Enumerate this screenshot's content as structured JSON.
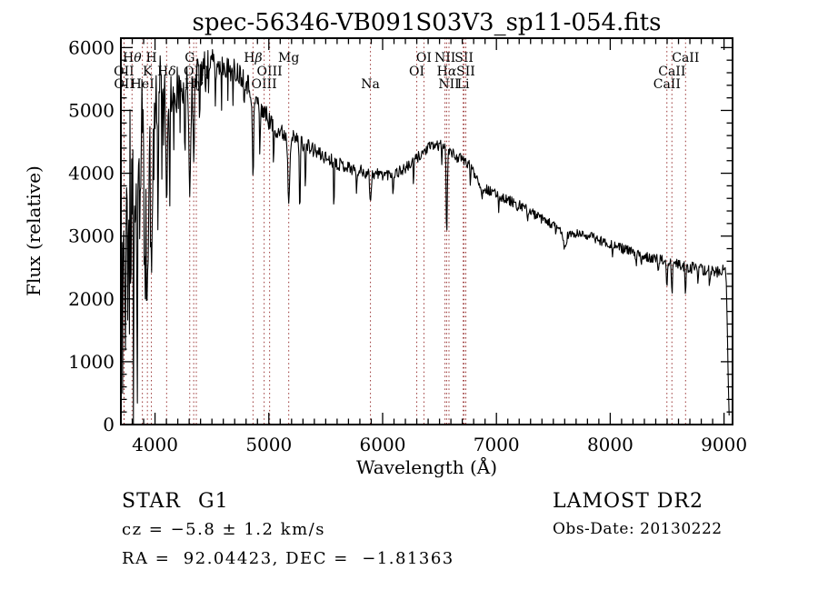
{
  "title": "spec-56346-VB091S03V3_sp11-054.fits",
  "footer": {
    "class_label": "STAR",
    "subclass_label": "G1",
    "cz_line": "cz = −5.8 ± 1.2 km/s",
    "radec_line": "RA =  92.04423, DEC =  −1.81363",
    "survey_label": "LAMOST DR2",
    "obs_date_label": "Obs-Date: 20130222"
  },
  "colors": {
    "background": "#ffffff",
    "spectrum": "#000000",
    "frame": "#000000",
    "text": "#000000",
    "marker_line": "#993333"
  },
  "chart_data": {
    "type": "line",
    "title": "spec-56346-VB091S03V3_sp11-054.fits",
    "xlabel": "Wavelength (Å)",
    "ylabel": "Flux (relative)",
    "xlim": [
      3700,
      9075
    ],
    "ylim": [
      0,
      6150
    ],
    "xticks": [
      4000,
      5000,
      6000,
      7000,
      8000,
      9000
    ],
    "yticks": [
      0,
      1000,
      2000,
      3000,
      4000,
      5000,
      6000
    ],
    "x_minor_step": 100,
    "y_minor_step": 200,
    "grid": false,
    "legend": "none",
    "sample_step": 5,
    "spectrum_end": 9048,
    "noise_seed": 11,
    "spectral_lines": [
      {
        "label": "OII",
        "wavelength": 3727,
        "row": 2
      },
      {
        "label": "OII",
        "wavelength": 3729,
        "row": 3
      },
      {
        "label": "Hθ",
        "wavelength": 3798,
        "row": 1
      },
      {
        "label": "HeI",
        "wavelength": 3889,
        "row": 3
      },
      {
        "label": "K",
        "wavelength": 3933,
        "row": 2
      },
      {
        "label": "H",
        "wavelength": 3968,
        "row": 1
      },
      {
        "label": "Hδ",
        "wavelength": 4102,
        "row": 2
      },
      {
        "label": "G",
        "wavelength": 4305,
        "row": 1
      },
      {
        "label": "Hγ",
        "wavelength": 4340,
        "row": 3
      },
      {
        "label": "OIII",
        "wavelength": 4363,
        "row": 2
      },
      {
        "label": "Hβ",
        "wavelength": 4861,
        "row": 1
      },
      {
        "label": "OIII",
        "wavelength": 4959,
        "row": 3
      },
      {
        "label": "OIII",
        "wavelength": 5007,
        "row": 2
      },
      {
        "label": "Mg",
        "wavelength": 5175,
        "row": 1
      },
      {
        "label": "Na",
        "wavelength": 5893,
        "row": 3
      },
      {
        "label": "OI",
        "wavelength": 6300,
        "row": 2
      },
      {
        "label": "OI",
        "wavelength": 6363,
        "row": 1
      },
      {
        "label": "NII",
        "wavelength": 6548,
        "row": 1
      },
      {
        "label": "Hα",
        "wavelength": 6563,
        "row": 2
      },
      {
        "label": "NII",
        "wavelength": 6583,
        "row": 3
      },
      {
        "label": "Li",
        "wavelength": 6708,
        "row": 3
      },
      {
        "label": "SII",
        "wavelength": 6716,
        "row": 1
      },
      {
        "label": "SII",
        "wavelength": 6731,
        "row": 2
      },
      {
        "label": "CaII",
        "wavelength": 8498,
        "row": 3
      },
      {
        "label": "CaII",
        "wavelength": 8542,
        "row": 2
      },
      {
        "label": "CaII",
        "wavelength": 8662,
        "row": 1
      }
    ],
    "continuum_anchors": [
      [
        3700,
        2300
      ],
      [
        3720,
        3100
      ],
      [
        3745,
        3550
      ],
      [
        3775,
        3900
      ],
      [
        3805,
        4250
      ],
      [
        3835,
        4500
      ],
      [
        3865,
        4700
      ],
      [
        3895,
        4850
      ],
      [
        3925,
        4900
      ],
      [
        3955,
        4950
      ],
      [
        3985,
        5100
      ],
      [
        4015,
        5250
      ],
      [
        4045,
        5400
      ],
      [
        4075,
        5420
      ],
      [
        4105,
        5400
      ],
      [
        4135,
        5320
      ],
      [
        4165,
        5300
      ],
      [
        4200,
        5350
      ],
      [
        4240,
        5400
      ],
      [
        4280,
        5430
      ],
      [
        4320,
        5480
      ],
      [
        4360,
        5560
      ],
      [
        4400,
        5640
      ],
      [
        4440,
        5720
      ],
      [
        4480,
        5760
      ],
      [
        4520,
        5760
      ],
      [
        4560,
        5700
      ],
      [
        4600,
        5730
      ],
      [
        4640,
        5690
      ],
      [
        4680,
        5650
      ],
      [
        4720,
        5620
      ],
      [
        4760,
        5570
      ],
      [
        4800,
        5480
      ],
      [
        4840,
        5330
      ],
      [
        4880,
        5180
      ],
      [
        4920,
        5100
      ],
      [
        4960,
        4980
      ],
      [
        5000,
        4850
      ],
      [
        5050,
        4730
      ],
      [
        5100,
        4660
      ],
      [
        5150,
        4610
      ],
      [
        5200,
        4570
      ],
      [
        5250,
        4530
      ],
      [
        5300,
        4480
      ],
      [
        5350,
        4420
      ],
      [
        5400,
        4360
      ],
      [
        5450,
        4300
      ],
      [
        5500,
        4250
      ],
      [
        5560,
        4200
      ],
      [
        5620,
        4150
      ],
      [
        5680,
        4110
      ],
      [
        5740,
        4070
      ],
      [
        5800,
        4040
      ],
      [
        5860,
        4010
      ],
      [
        5920,
        3990
      ],
      [
        5980,
        3985
      ],
      [
        6040,
        3985
      ],
      [
        6100,
        4000
      ],
      [
        6160,
        4040
      ],
      [
        6220,
        4100
      ],
      [
        6280,
        4200
      ],
      [
        6340,
        4310
      ],
      [
        6400,
        4400
      ],
      [
        6450,
        4440
      ],
      [
        6500,
        4450
      ],
      [
        6550,
        4430
      ],
      [
        6600,
        4330
      ],
      [
        6650,
        4260
      ],
      [
        6700,
        4220
      ],
      [
        6750,
        4150
      ],
      [
        6800,
        4020
      ],
      [
        6850,
        3880
      ],
      [
        6900,
        3760
      ],
      [
        6950,
        3700
      ],
      [
        7000,
        3660
      ],
      [
        7060,
        3610
      ],
      [
        7120,
        3560
      ],
      [
        7180,
        3520
      ],
      [
        7240,
        3460
      ],
      [
        7300,
        3390
      ],
      [
        7360,
        3310
      ],
      [
        7420,
        3250
      ],
      [
        7480,
        3190
      ],
      [
        7540,
        3130
      ],
      [
        7600,
        3040
      ],
      [
        7660,
        3020
      ],
      [
        7720,
        3030
      ],
      [
        7780,
        3020
      ],
      [
        7840,
        2990
      ],
      [
        7900,
        2940
      ],
      [
        7960,
        2900
      ],
      [
        8020,
        2860
      ],
      [
        8080,
        2820
      ],
      [
        8140,
        2780
      ],
      [
        8200,
        2740
      ],
      [
        8260,
        2700
      ],
      [
        8320,
        2680
      ],
      [
        8380,
        2650
      ],
      [
        8440,
        2620
      ],
      [
        8500,
        2590
      ],
      [
        8560,
        2560
      ],
      [
        8620,
        2535
      ],
      [
        8680,
        2510
      ],
      [
        8740,
        2490
      ],
      [
        8800,
        2465
      ],
      [
        8860,
        2445
      ],
      [
        8920,
        2430
      ],
      [
        8970,
        2440
      ],
      [
        9000,
        2470
      ],
      [
        9012,
        2430
      ],
      [
        9022,
        2150
      ],
      [
        9030,
        1400
      ],
      [
        9038,
        600
      ],
      [
        9044,
        180
      ],
      [
        9048,
        60
      ]
    ],
    "noise_amplitude_anchors": [
      [
        3700,
        1050
      ],
      [
        3760,
        1150
      ],
      [
        3820,
        1100
      ],
      [
        3880,
        1000
      ],
      [
        3930,
        820
      ],
      [
        3970,
        700
      ],
      [
        4010,
        520
      ],
      [
        4060,
        450
      ],
      [
        4120,
        420
      ],
      [
        4200,
        370
      ],
      [
        4300,
        330
      ],
      [
        4400,
        270
      ],
      [
        4500,
        220
      ],
      [
        4600,
        205
      ],
      [
        4700,
        195
      ],
      [
        4800,
        185
      ],
      [
        4900,
        175
      ],
      [
        5000,
        155
      ],
      [
        5150,
        135
      ],
      [
        5300,
        125
      ],
      [
        5500,
        112
      ],
      [
        5700,
        105
      ],
      [
        5900,
        98
      ],
      [
        6100,
        93
      ],
      [
        6300,
        90
      ],
      [
        6600,
        85
      ],
      [
        6900,
        82
      ],
      [
        7200,
        78
      ],
      [
        7500,
        75
      ],
      [
        7800,
        75
      ],
      [
        8100,
        78
      ],
      [
        8400,
        82
      ],
      [
        8700,
        90
      ],
      [
        8900,
        100
      ],
      [
        8980,
        95
      ],
      [
        9020,
        60
      ],
      [
        9035,
        30
      ],
      [
        9048,
        12
      ]
    ],
    "absorption_features_format": "[wavelength, depth, width]",
    "absorption_features": [
      [
        3933,
        3300,
        13
      ],
      [
        3968,
        2450,
        12
      ],
      [
        4102,
        1700,
        9
      ],
      [
        4305,
        1700,
        11
      ],
      [
        4340,
        1400,
        8
      ],
      [
        4861,
        1400,
        8
      ],
      [
        5175,
        1000,
        11
      ],
      [
        5893,
        430,
        9
      ],
      [
        6563,
        1380,
        7
      ],
      [
        6870,
        190,
        12
      ],
      [
        7186,
        160,
        10
      ],
      [
        7600,
        240,
        18
      ],
      [
        8227,
        160,
        8
      ],
      [
        8498,
        380,
        6
      ],
      [
        8542,
        520,
        6
      ],
      [
        8662,
        430,
        6
      ],
      [
        3715,
        1500,
        5
      ],
      [
        3737,
        2000,
        6
      ],
      [
        3762,
        2200,
        5
      ],
      [
        3788,
        1700,
        4
      ],
      [
        3812,
        2300,
        6
      ],
      [
        3842,
        2600,
        7
      ],
      [
        3868,
        1500,
        5
      ],
      [
        3908,
        2000,
        5
      ],
      [
        3990,
        1300,
        4
      ],
      [
        4025,
        2400,
        5
      ],
      [
        4060,
        1100,
        4
      ],
      [
        4130,
        1600,
        5
      ],
      [
        4165,
        1100,
        4
      ],
      [
        4220,
        1000,
        4
      ],
      [
        4262,
        800,
        4
      ],
      [
        4392,
        900,
        4
      ],
      [
        4442,
        650,
        3
      ],
      [
        4472,
        550,
        3
      ],
      [
        4532,
        750,
        4
      ],
      [
        4585,
        550,
        3
      ],
      [
        4640,
        500,
        3
      ],
      [
        4685,
        650,
        4
      ],
      [
        4782,
        550,
        3
      ],
      [
        4922,
        900,
        5
      ],
      [
        5042,
        700,
        4
      ],
      [
        5272,
        1300,
        5
      ],
      [
        5322,
        900,
        4
      ],
      [
        5572,
        800,
        4
      ],
      [
        5772,
        500,
        4
      ],
      [
        6092,
        400,
        4
      ],
      [
        6272,
        380,
        4
      ],
      [
        6522,
        380,
        3
      ],
      [
        6772,
        350,
        3
      ],
      [
        7022,
        300,
        3
      ],
      [
        7272,
        280,
        3
      ],
      [
        7522,
        280,
        3
      ],
      [
        8022,
        250,
        3
      ],
      [
        8272,
        280,
        3
      ],
      [
        8422,
        320,
        4
      ],
      [
        8772,
        340,
        4
      ],
      [
        8872,
        300,
        3
      ]
    ]
  }
}
